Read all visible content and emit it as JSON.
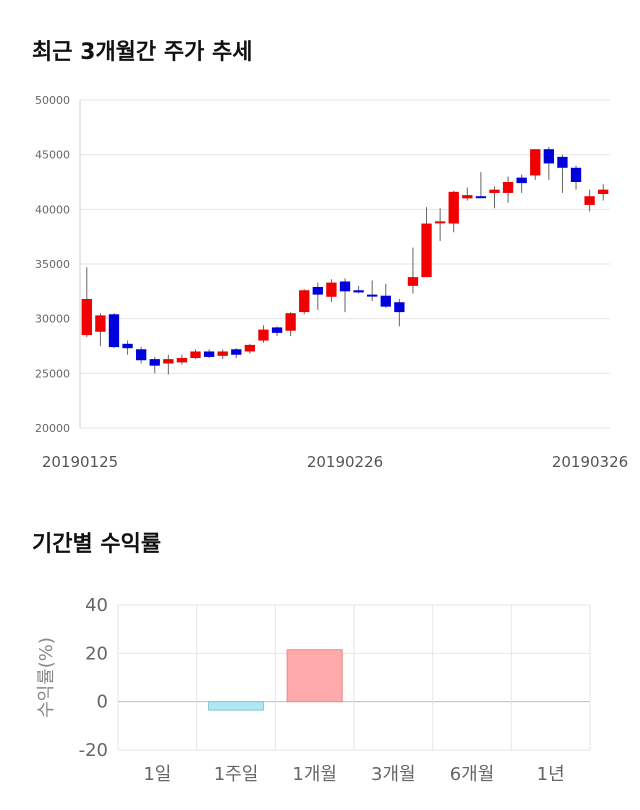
{
  "sections": {
    "price_title": "최근 3개월간 주가 추세",
    "return_title": "기간별 수익률"
  },
  "colors": {
    "up": "#f00000",
    "down": "#0000dd",
    "grid": "#e6e6e6",
    "positive_bar": "#ffaaaa",
    "negative_bar": "#aee8f2"
  },
  "chart_data": [
    {
      "type": "candlestick",
      "title": "최근 3개월간 주가 추세",
      "ylim": [
        20000,
        50000
      ],
      "yticks": [
        20000,
        25000,
        30000,
        35000,
        40000,
        45000,
        50000
      ],
      "xtick_labels": [
        {
          "label": "20190125",
          "index": 0
        },
        {
          "label": "20190226",
          "index": 19
        },
        {
          "label": "20190326",
          "index": 39
        }
      ],
      "grid": true,
      "candles": [
        {
          "o": 28500,
          "h": 34700,
          "l": 28300,
          "c": 31800
        },
        {
          "o": 28800,
          "h": 30500,
          "l": 27500,
          "c": 30300
        },
        {
          "o": 30400,
          "h": 30500,
          "l": 27300,
          "c": 27400
        },
        {
          "o": 27700,
          "h": 28000,
          "l": 26700,
          "c": 27300
        },
        {
          "o": 27200,
          "h": 27400,
          "l": 25900,
          "c": 26200
        },
        {
          "o": 26300,
          "h": 26500,
          "l": 25000,
          "c": 25700
        },
        {
          "o": 25900,
          "h": 26700,
          "l": 24900,
          "c": 26300
        },
        {
          "o": 26000,
          "h": 26700,
          "l": 25800,
          "c": 26400
        },
        {
          "o": 26400,
          "h": 27200,
          "l": 26300,
          "c": 27000
        },
        {
          "o": 27000,
          "h": 27200,
          "l": 26400,
          "c": 26500
        },
        {
          "o": 26600,
          "h": 27200,
          "l": 26300,
          "c": 27000
        },
        {
          "o": 27200,
          "h": 27300,
          "l": 26400,
          "c": 26700
        },
        {
          "o": 27000,
          "h": 27700,
          "l": 26800,
          "c": 27600
        },
        {
          "o": 28000,
          "h": 29400,
          "l": 27800,
          "c": 29000
        },
        {
          "o": 29200,
          "h": 29300,
          "l": 28400,
          "c": 28700
        },
        {
          "o": 28900,
          "h": 30600,
          "l": 28400,
          "c": 30500
        },
        {
          "o": 30600,
          "h": 32700,
          "l": 30400,
          "c": 32600
        },
        {
          "o": 32900,
          "h": 33300,
          "l": 30800,
          "c": 32200
        },
        {
          "o": 32000,
          "h": 33600,
          "l": 31500,
          "c": 33300
        },
        {
          "o": 33400,
          "h": 33700,
          "l": 30600,
          "c": 32500
        },
        {
          "o": 32600,
          "h": 33000,
          "l": 32300,
          "c": 32400
        },
        {
          "o": 32200,
          "h": 33500,
          "l": 31600,
          "c": 32100
        },
        {
          "o": 32100,
          "h": 33200,
          "l": 31000,
          "c": 31100
        },
        {
          "o": 31500,
          "h": 31800,
          "l": 29300,
          "c": 30600
        },
        {
          "o": 33000,
          "h": 36500,
          "l": 32300,
          "c": 33800
        },
        {
          "o": 33800,
          "h": 40200,
          "l": 33800,
          "c": 38700
        },
        {
          "o": 38900,
          "h": 40100,
          "l": 37100,
          "c": 38900
        },
        {
          "o": 38700,
          "h": 41700,
          "l": 37900,
          "c": 41600
        },
        {
          "o": 41000,
          "h": 42000,
          "l": 40800,
          "c": 41300
        },
        {
          "o": 41200,
          "h": 43400,
          "l": 41100,
          "c": 41100
        },
        {
          "o": 41500,
          "h": 42100,
          "l": 40100,
          "c": 41800
        },
        {
          "o": 41500,
          "h": 43000,
          "l": 40600,
          "c": 42500
        },
        {
          "o": 42900,
          "h": 43200,
          "l": 41500,
          "c": 42400
        },
        {
          "o": 43100,
          "h": 45500,
          "l": 42700,
          "c": 45500
        },
        {
          "o": 45500,
          "h": 45700,
          "l": 42700,
          "c": 44200
        },
        {
          "o": 44800,
          "h": 45000,
          "l": 41500,
          "c": 43800
        },
        {
          "o": 43800,
          "h": 44000,
          "l": 41800,
          "c": 42500
        },
        {
          "o": 40400,
          "h": 41800,
          "l": 39800,
          "c": 41200
        },
        {
          "o": 41400,
          "h": 42300,
          "l": 40800,
          "c": 41800
        }
      ]
    },
    {
      "type": "bar",
      "title": "기간별 수익률",
      "ylabel": "수익률(%)",
      "ylim": [
        -20,
        40
      ],
      "yticks": [
        -20,
        0,
        20,
        40
      ],
      "categories": [
        "1일",
        "1주일",
        "1개월",
        "3개월",
        "6개월",
        "1년"
      ],
      "values": [
        0,
        -3.5,
        21.5,
        null,
        null,
        null
      ],
      "grid": true
    }
  ]
}
